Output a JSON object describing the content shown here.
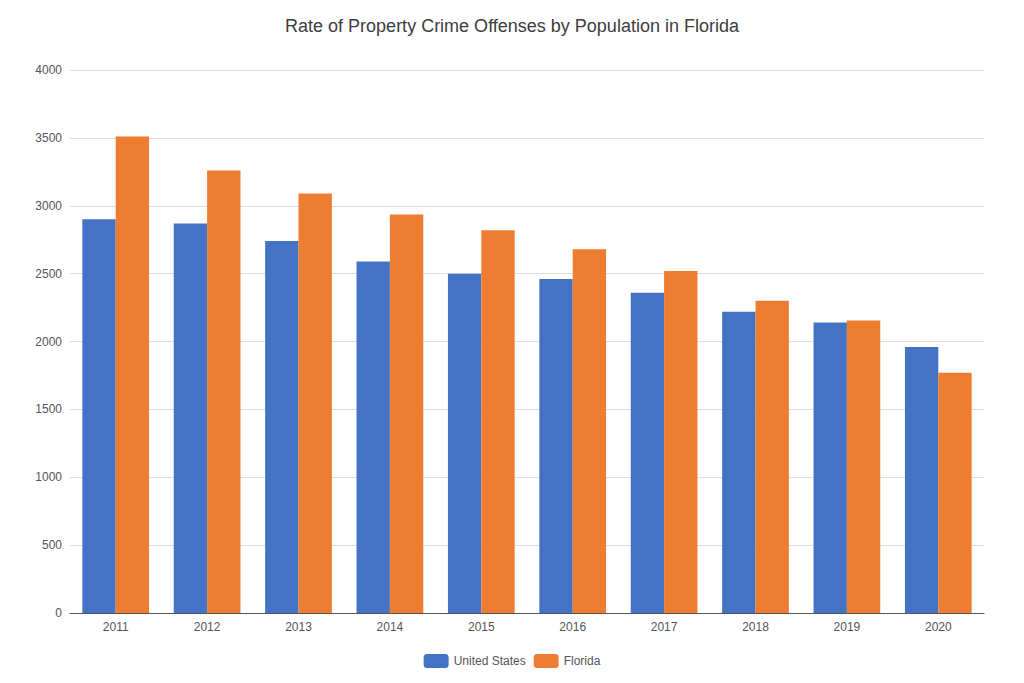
{
  "chart_data": {
    "type": "bar",
    "title": "Rate of Property Crime Offenses by Population in Florida",
    "categories": [
      "2011",
      "2012",
      "2013",
      "2014",
      "2015",
      "2016",
      "2017",
      "2018",
      "2019",
      "2020"
    ],
    "series": [
      {
        "name": "United States",
        "color": "#4472C4",
        "values": [
          2900,
          2870,
          2740,
          2590,
          2500,
          2460,
          2360,
          2220,
          2140,
          1960
        ]
      },
      {
        "name": "Florida",
        "color": "#ED7D31",
        "values": [
          3510,
          3260,
          3090,
          2935,
          2820,
          2680,
          2520,
          2300,
          2155,
          1770
        ]
      }
    ],
    "ylim": [
      0,
      4000
    ],
    "yticks": [
      0,
      500,
      1000,
      1500,
      2000,
      2500,
      3000,
      3500,
      4000
    ],
    "grid": true,
    "legend": "bottom"
  }
}
